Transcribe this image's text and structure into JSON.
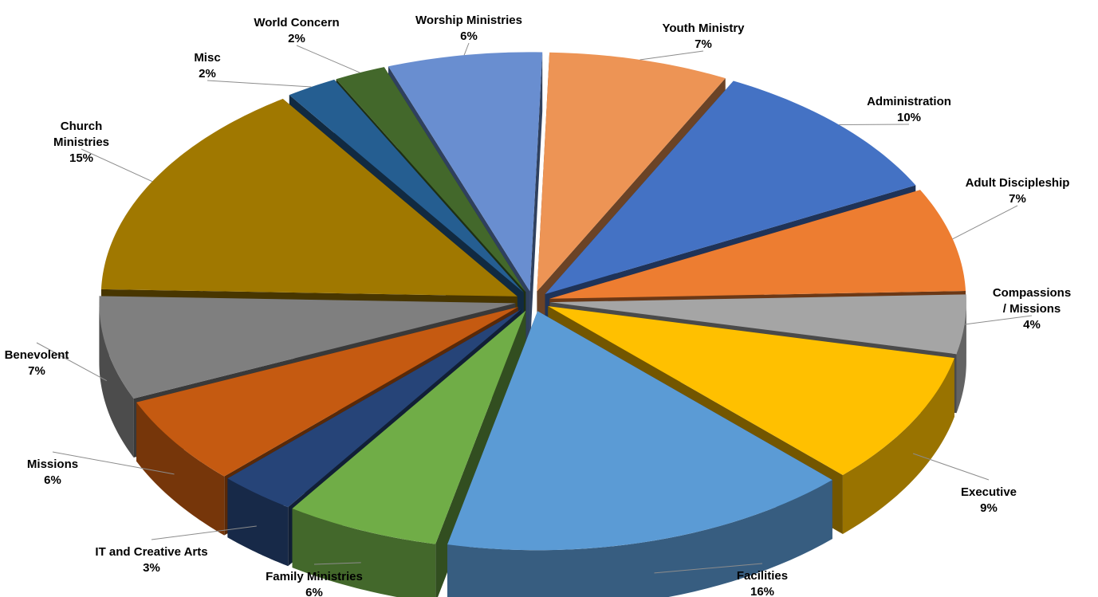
{
  "chart_data": {
    "type": "pie",
    "title": "",
    "legend": "none",
    "slices": [
      {
        "label": "Youth Ministry",
        "value": 7,
        "display": "7%",
        "color": "#ED9455"
      },
      {
        "label": "Administration",
        "value": 10,
        "display": "10%",
        "color": "#4472C4"
      },
      {
        "label": "Adult Discipleship",
        "value": 7,
        "display": "7%",
        "color": "#ED7D31"
      },
      {
        "label": "Compassions / Missions",
        "value": 4,
        "display": "4%",
        "color": "#A5A5A5"
      },
      {
        "label": "Executive",
        "value": 9,
        "display": "9%",
        "color": "#FFC000"
      },
      {
        "label": "Facilities",
        "value": 16,
        "display": "16%",
        "color": "#5B9BD5"
      },
      {
        "label": "Family Ministries",
        "value": 6,
        "display": "6%",
        "color": "#70AD47"
      },
      {
        "label": "IT and Creative Arts",
        "value": 3,
        "display": "3%",
        "color": "#264478"
      },
      {
        "label": "Missions",
        "value": 6,
        "display": "6%",
        "color": "#C55A11"
      },
      {
        "label": "Benevolent",
        "value": 7,
        "display": "7%",
        "color": "#7F7F7F"
      },
      {
        "label": "Church Ministries",
        "value": 15,
        "display": "15%",
        "color": "#A07800"
      },
      {
        "label": "Misc",
        "value": 2,
        "display": "2%",
        "color": "#255E91"
      },
      {
        "label": "World Concern",
        "value": 2,
        "display": "2%",
        "color": "#43682B"
      },
      {
        "label": "Worship Ministries",
        "value": 6,
        "display": "6%",
        "color": "#698ED0"
      }
    ]
  }
}
